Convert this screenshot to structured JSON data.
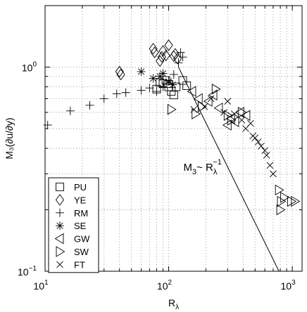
{
  "chart_data": {
    "type": "scatter",
    "xscale": "log",
    "yscale": "log",
    "xlim": [
      10,
      1200
    ],
    "ylim": [
      0.1,
      2.0
    ],
    "grid": true,
    "legend_position": "bottom-left",
    "xlabel": {
      "base": "R",
      "sub": "λ"
    },
    "ylabel": "M₃(∂u/∂y)",
    "x_ticks": [
      {
        "value": 10,
        "base": "10",
        "exp": "1"
      },
      {
        "value": 100,
        "base": "10",
        "exp": "2"
      },
      {
        "value": 1000,
        "base": "10",
        "exp": "3"
      }
    ],
    "y_ticks": [
      {
        "value": 0.1,
        "base": "10",
        "exp": "−1"
      },
      {
        "value": 1,
        "base": "10",
        "exp": "0"
      }
    ],
    "annotation": {
      "text_main": "M",
      "text_sub": "3",
      "text_mid": "~ R",
      "text_sub2": "λ",
      "text_sup": "−1",
      "x": 150,
      "y": 0.31
    },
    "reference_line": {
      "type": "power_law",
      "exponent": -1,
      "from": [
        120,
        1.0
      ],
      "to": [
        780,
        0.1
      ]
    },
    "series": [
      {
        "name": "PU",
        "marker": "square",
        "points": [
          [
            80,
            0.78
          ],
          [
            85,
            0.84
          ],
          [
            90,
            0.83
          ],
          [
            95,
            0.86
          ],
          [
            100,
            0.8
          ],
          [
            105,
            0.76
          ],
          [
            110,
            0.73
          ],
          [
            115,
            0.8
          ],
          [
            130,
            0.86
          ],
          [
            140,
            0.81
          ]
        ]
      },
      {
        "name": "YE",
        "marker": "diamond",
        "points": [
          [
            40,
            0.95
          ],
          [
            41,
            0.92
          ],
          [
            75,
            1.23
          ],
          [
            77,
            1.18
          ],
          [
            85,
            1.07
          ],
          [
            88,
            1.12
          ],
          [
            90,
            1.2
          ],
          [
            95,
            1.14
          ],
          [
            100,
            1.28
          ],
          [
            110,
            1.13
          ],
          [
            113,
            1.16
          ],
          [
            118,
            1.1
          ]
        ]
      },
      {
        "name": "RM",
        "marker": "plus",
        "points": [
          [
            10.5,
            0.52
          ],
          [
            16,
            0.61
          ],
          [
            23,
            0.65
          ],
          [
            30,
            0.7
          ],
          [
            38,
            0.74
          ],
          [
            45,
            0.75
          ],
          [
            60,
            0.77
          ],
          [
            70,
            0.79
          ],
          [
            80,
            0.76
          ],
          [
            90,
            0.8
          ],
          [
            100,
            0.86
          ],
          [
            110,
            0.92
          ],
          [
            120,
            1.05
          ],
          [
            125,
            1.18
          ],
          [
            130,
            1.12
          ]
        ]
      },
      {
        "name": "SE",
        "marker": "asterisk",
        "points": [
          [
            60,
            0.95
          ],
          [
            75,
            0.88
          ],
          [
            85,
            0.9
          ],
          [
            90,
            0.93
          ],
          [
            100,
            0.85
          ],
          [
            108,
            0.82
          ]
        ]
      },
      {
        "name": "GW",
        "marker": "triangle-left",
        "points": [
          [
            155,
            0.76
          ],
          [
            175,
            0.7
          ],
          [
            210,
            0.68
          ],
          [
            230,
            0.73
          ],
          [
            255,
            0.63
          ],
          [
            300,
            0.52
          ],
          [
            320,
            0.56
          ],
          [
            345,
            0.54
          ],
          [
            380,
            0.6
          ],
          [
            425,
            0.58
          ]
        ]
      },
      {
        "name": "SW",
        "marker": "triangle-right",
        "points": [
          [
            105,
            0.62
          ],
          [
            165,
            0.59
          ],
          [
            185,
            0.64
          ],
          [
            240,
            0.78
          ],
          [
            300,
            0.58
          ],
          [
            320,
            0.55
          ],
          [
            390,
            0.6
          ],
          [
            780,
            0.25
          ],
          [
            800,
            0.2
          ],
          [
            810,
            0.22
          ],
          [
            860,
            0.23
          ],
          [
            980,
            0.22
          ],
          [
            1050,
            0.22
          ]
        ]
      },
      {
        "name": "FT",
        "marker": "x",
        "points": [
          [
            160,
            0.62
          ],
          [
            195,
            0.64
          ],
          [
            220,
            0.7
          ],
          [
            280,
            0.6
          ],
          [
            300,
            0.68
          ],
          [
            340,
            0.59
          ],
          [
            390,
            0.55
          ],
          [
            420,
            0.5
          ],
          [
            460,
            0.53
          ],
          [
            480,
            0.46
          ],
          [
            500,
            0.45
          ],
          [
            530,
            0.43
          ],
          [
            560,
            0.41
          ],
          [
            600,
            0.39
          ],
          [
            620,
            0.37
          ],
          [
            660,
            0.33
          ],
          [
            700,
            0.3
          ]
        ]
      }
    ]
  }
}
